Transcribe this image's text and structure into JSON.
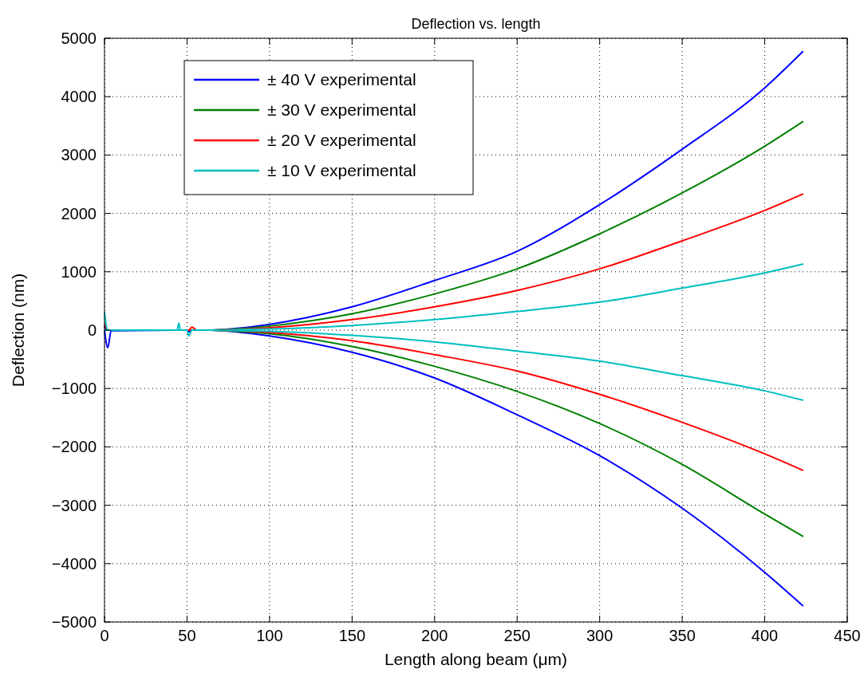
{
  "chart_data": {
    "type": "line",
    "title": "Deflection vs. length",
    "xlabel": "Length along beam (μm)",
    "ylabel": "Deflection (nm)",
    "x": [
      0,
      2,
      4,
      44,
      45,
      46,
      50,
      51,
      53,
      56,
      65,
      80,
      100,
      150,
      200,
      250,
      300,
      350,
      400,
      423
    ],
    "xlim": [
      0,
      450
    ],
    "xticks": [
      0,
      50,
      100,
      150,
      200,
      250,
      300,
      350,
      400,
      450
    ],
    "ylim": [
      -5000,
      5000
    ],
    "yticks": [
      -5000,
      -4000,
      -3000,
      -2000,
      -1000,
      0,
      1000,
      2000,
      3000,
      4000,
      5000
    ],
    "grid": true,
    "legend": "top left",
    "series": [
      {
        "name": "± 40 V experimental",
        "color": "#0000ff",
        "values": [
          50,
          0,
          0,
          0,
          0,
          0,
          0,
          0,
          0,
          0,
          0,
          30,
          100,
          400,
          850,
          1350,
          2150,
          3100,
          4150,
          4770
        ]
      },
      {
        "name": "± 30 V experimental",
        "color": "#008000",
        "values": [
          null,
          null,
          null,
          null,
          null,
          null,
          null,
          null,
          null,
          null,
          0,
          20,
          70,
          280,
          620,
          1050,
          1650,
          2350,
          3150,
          3570
        ]
      },
      {
        "name": "± 20 V experimental",
        "color": "#ff0000",
        "values": [
          100,
          0,
          0,
          0,
          0,
          0,
          0,
          0,
          50,
          0,
          0,
          10,
          40,
          180,
          400,
          680,
          1050,
          1530,
          2050,
          2330
        ]
      },
      {
        "name": "± 10 V experimental",
        "color": "#00bfbf",
        "values": [
          300,
          0,
          0,
          0,
          120,
          0,
          0,
          0,
          0,
          0,
          0,
          10,
          20,
          80,
          180,
          320,
          480,
          720,
          980,
          1130
        ]
      },
      {
        "color": "#0000ff",
        "values": [
          0,
          -300,
          -10,
          0,
          0,
          0,
          0,
          -30,
          0,
          0,
          0,
          -30,
          -100,
          -380,
          -820,
          -1450,
          -2150,
          -3050,
          -4150,
          -4720
        ]
      },
      {
        "color": "#008000",
        "values": [
          null,
          null,
          null,
          null,
          null,
          null,
          null,
          null,
          null,
          null,
          0,
          -20,
          -60,
          -280,
          -620,
          -1050,
          -1600,
          -2300,
          -3150,
          -3530
        ]
      },
      {
        "color": "#ff0000",
        "values": [
          0,
          0,
          0,
          0,
          0,
          0,
          0,
          0,
          0,
          0,
          0,
          -10,
          -40,
          -180,
          -420,
          -700,
          -1100,
          -1580,
          -2120,
          -2400
        ]
      },
      {
        "color": "#00bfbf",
        "values": [
          0,
          0,
          0,
          0,
          0,
          0,
          0,
          -100,
          0,
          0,
          0,
          -10,
          -20,
          -90,
          -200,
          -360,
          -530,
          -780,
          -1040,
          -1200
        ]
      }
    ]
  }
}
